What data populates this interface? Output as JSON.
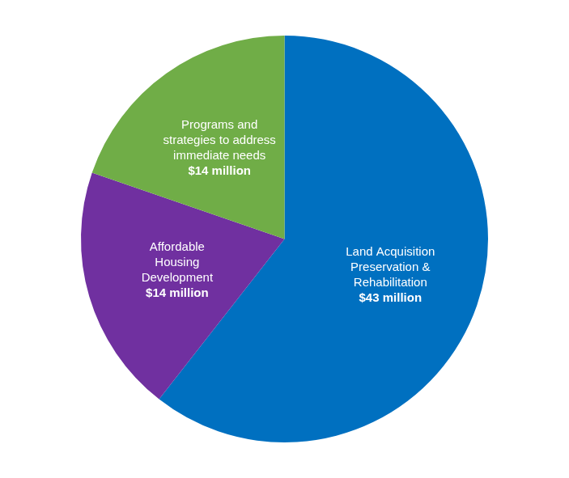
{
  "chart_data": {
    "type": "pie",
    "categories": [
      "Land Acquisition Preservation & Rehabilitation",
      "Affordable Housing Development",
      "Programs and strategies to address immediate needs"
    ],
    "values": [
      43,
      14,
      14
    ],
    "value_labels": [
      "$43 million",
      "$14 million",
      "$14 million"
    ],
    "colors": [
      "#0070c0",
      "#7030a0",
      "#70ad47"
    ],
    "data_labels": true
  }
}
